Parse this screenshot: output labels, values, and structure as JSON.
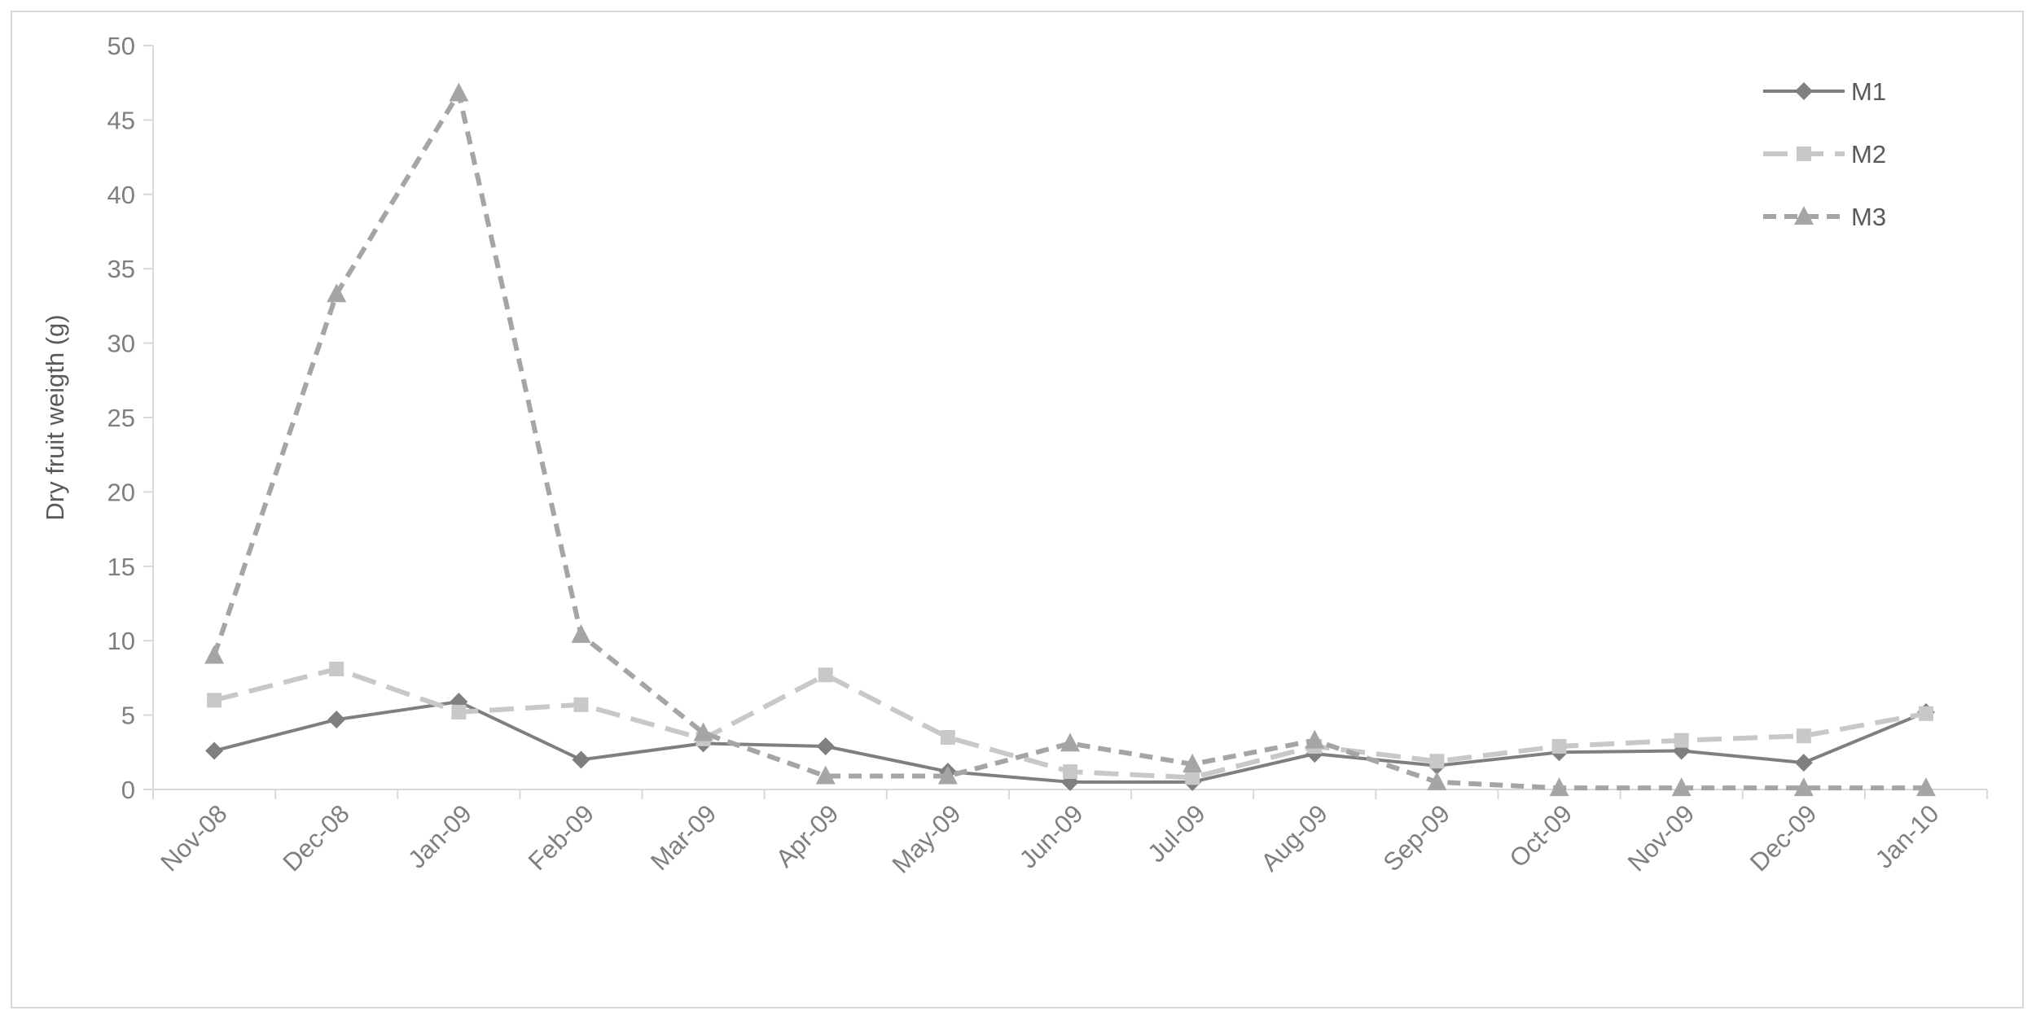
{
  "chart_data": {
    "type": "line",
    "title": "",
    "xlabel": "",
    "ylabel": "Dry fruit weigth (g)",
    "ylim": [
      0,
      50
    ],
    "yticks": [
      0,
      5,
      10,
      15,
      20,
      25,
      30,
      35,
      40,
      45,
      50
    ],
    "grid": false,
    "legend_position": "top-right",
    "categories": [
      "Nov-08",
      "Dec-08",
      "Jan-09",
      "Feb-09",
      "Mar-09",
      "Apr-09",
      "May-09",
      "Jun-09",
      "Jul-09",
      "Aug-09",
      "Sep-09",
      "Oct-09",
      "Nov-09",
      "Dec-09",
      "Jan-10"
    ],
    "series": [
      {
        "name": "M1",
        "values": [
          2.6,
          4.7,
          5.9,
          2.0,
          3.1,
          2.9,
          1.2,
          0.5,
          0.5,
          2.4,
          1.6,
          2.5,
          2.6,
          1.8,
          5.2
        ],
        "color": "#7f7f7f",
        "line_style": "solid",
        "marker": "diamond"
      },
      {
        "name": "M2",
        "values": [
          6.0,
          8.1,
          5.2,
          5.7,
          3.4,
          7.7,
          3.5,
          1.2,
          0.8,
          2.9,
          1.9,
          2.9,
          3.3,
          3.6,
          5.1
        ],
        "color": "#c8c8c8",
        "line_style": "long-dash",
        "marker": "square"
      },
      {
        "name": "M3",
        "values": [
          9.0,
          33.3,
          46.8,
          10.4,
          3.8,
          0.9,
          0.9,
          3.1,
          1.7,
          3.3,
          0.5,
          0.1,
          0.1,
          0.1,
          0.1
        ],
        "color": "#a5a5a5",
        "line_style": "dash",
        "marker": "triangle"
      }
    ]
  }
}
